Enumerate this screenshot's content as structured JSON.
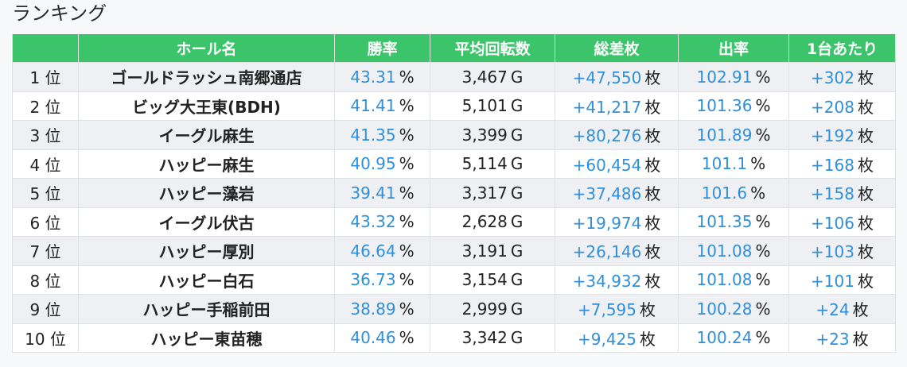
{
  "title": "ランキング",
  "columns": [
    "",
    "ホール名",
    "勝率",
    "平均回転数",
    "総差枚",
    "出率",
    "1台あたり"
  ],
  "units": {
    "percent": "%",
    "games": "G",
    "coins": "枚"
  },
  "colors": {
    "header_bg": "#3cc46b",
    "value_text": "#2f8fd8"
  },
  "rows": [
    {
      "rank": "1 位",
      "hall": "ゴールドラッシュ南郷通店",
      "win_rate": "43.31",
      "avg_spins": "3,467",
      "total_diff": "+47,550",
      "payout_rate": "102.91",
      "per_unit": "+302"
    },
    {
      "rank": "2 位",
      "hall": "ビッグ大王東(BDH)",
      "win_rate": "41.41",
      "avg_spins": "5,101",
      "total_diff": "+41,217",
      "payout_rate": "101.36",
      "per_unit": "+208"
    },
    {
      "rank": "3 位",
      "hall": "イーグル麻生",
      "win_rate": "41.35",
      "avg_spins": "3,399",
      "total_diff": "+80,276",
      "payout_rate": "101.89",
      "per_unit": "+192"
    },
    {
      "rank": "4 位",
      "hall": "ハッピー麻生",
      "win_rate": "40.95",
      "avg_spins": "5,114",
      "total_diff": "+60,454",
      "payout_rate": "101.1",
      "per_unit": "+168"
    },
    {
      "rank": "5 位",
      "hall": "ハッピー藻岩",
      "win_rate": "39.41",
      "avg_spins": "3,317",
      "total_diff": "+37,486",
      "payout_rate": "101.6",
      "per_unit": "+158"
    },
    {
      "rank": "6 位",
      "hall": "イーグル伏古",
      "win_rate": "43.32",
      "avg_spins": "2,628",
      "total_diff": "+19,974",
      "payout_rate": "101.35",
      "per_unit": "+106"
    },
    {
      "rank": "7 位",
      "hall": "ハッピー厚別",
      "win_rate": "46.64",
      "avg_spins": "3,191",
      "total_diff": "+26,146",
      "payout_rate": "101.08",
      "per_unit": "+103"
    },
    {
      "rank": "8 位",
      "hall": "ハッピー白石",
      "win_rate": "36.73",
      "avg_spins": "3,154",
      "total_diff": "+34,932",
      "payout_rate": "101.08",
      "per_unit": "+101"
    },
    {
      "rank": "9 位",
      "hall": "ハッピー手稲前田",
      "win_rate": "38.89",
      "avg_spins": "2,999",
      "total_diff": "+7,595",
      "payout_rate": "100.28",
      "per_unit": "+24"
    },
    {
      "rank": "10 位",
      "hall": "ハッピー東苗穂",
      "win_rate": "40.46",
      "avg_spins": "3,342",
      "total_diff": "+9,425",
      "payout_rate": "100.24",
      "per_unit": "+23"
    }
  ]
}
